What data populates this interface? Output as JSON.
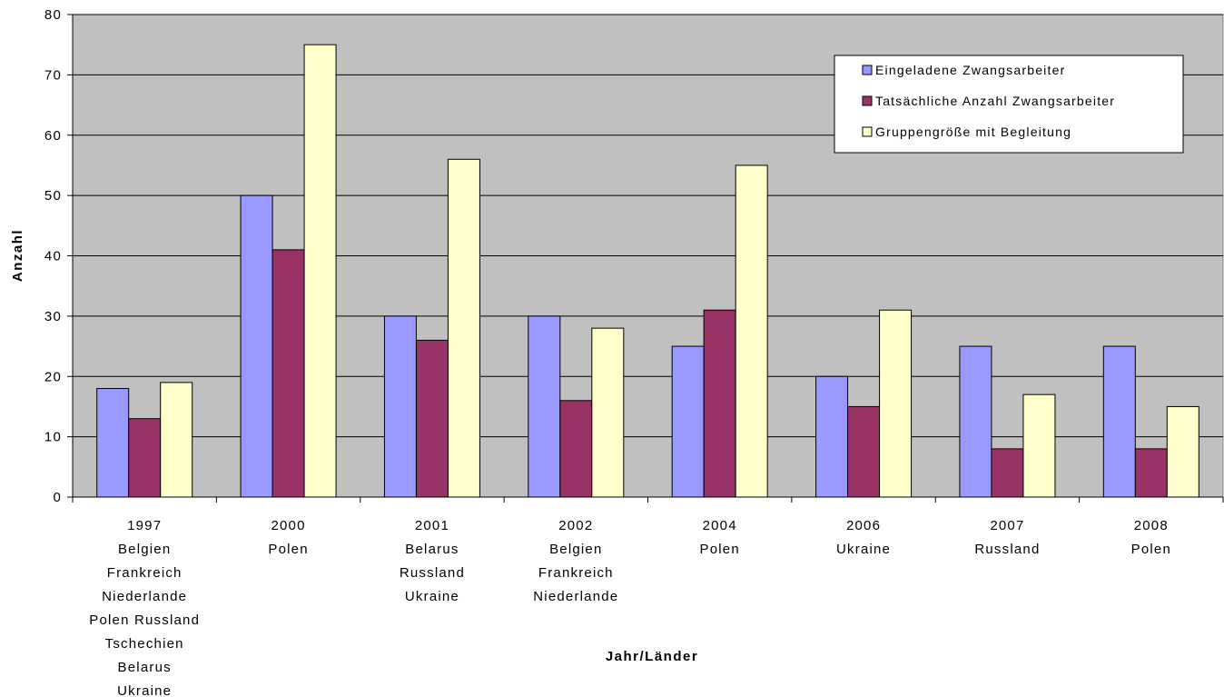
{
  "chart_data": {
    "type": "bar",
    "title": "",
    "xlabel": "Jahr/Länder",
    "ylabel": "Anzahl",
    "ylim": [
      0,
      80
    ],
    "yticks": [
      0,
      10,
      20,
      30,
      40,
      50,
      60,
      70,
      80
    ],
    "grid": true,
    "legend_position": "top-right",
    "categories": [
      [
        "1997",
        "Belgien",
        "Frankreich",
        "Niederlande",
        "Polen Russland",
        "Tschechien",
        "Belarus",
        "Ukraine"
      ],
      [
        "2000",
        "Polen"
      ],
      [
        "2001",
        "Belarus",
        "Russland",
        "Ukraine"
      ],
      [
        "2002",
        "Belgien",
        "Frankreich",
        "Niederlande"
      ],
      [
        "2004",
        "Polen"
      ],
      [
        "2006",
        "Ukraine"
      ],
      [
        "2007",
        "Russland"
      ],
      [
        "2008",
        "Polen"
      ]
    ],
    "series": [
      {
        "name": "Eingeladene Zwangsarbeiter",
        "color": "#9999ff",
        "values": [
          18,
          50,
          30,
          30,
          25,
          20,
          25,
          25
        ]
      },
      {
        "name": "Tatsächliche Anzahl Zwangsarbeiter",
        "color": "#993366",
        "values": [
          13,
          41,
          26,
          16,
          31,
          15,
          8,
          8
        ]
      },
      {
        "name": "Gruppengröße mit Begleitung",
        "color": "#ffffcc",
        "values": [
          19,
          75,
          56,
          28,
          55,
          31,
          17,
          15
        ]
      }
    ],
    "plot_background": "#c0c0c0"
  }
}
